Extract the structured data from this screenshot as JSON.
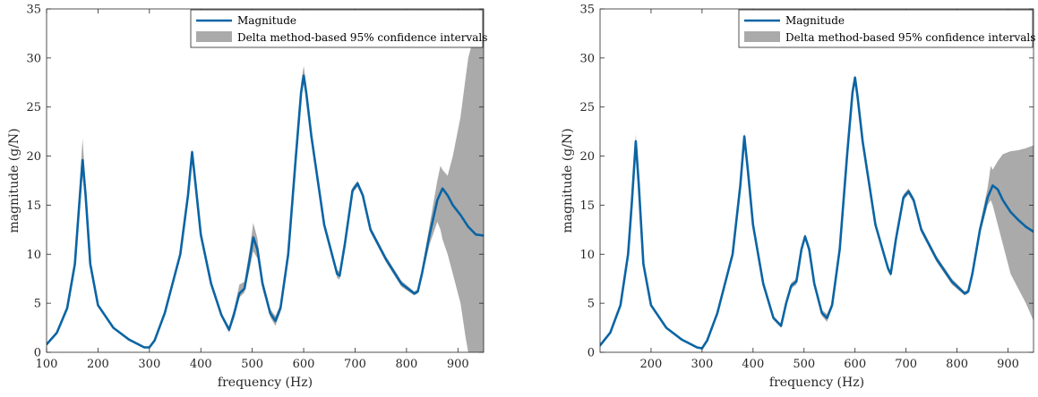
{
  "chart_data": [
    {
      "type": "line",
      "title": "",
      "xlabel": "frequency (Hz)",
      "ylabel": "magnitude (g/N)",
      "xlim": [
        100,
        950
      ],
      "ylim": [
        0,
        35
      ],
      "xticks": [
        100,
        200,
        300,
        400,
        500,
        600,
        700,
        800,
        900
      ],
      "yticks": [
        0,
        5,
        10,
        15,
        20,
        25,
        30,
        35
      ],
      "grid": false,
      "legend_position": "top-right",
      "series": [
        {
          "name": "Magnitude",
          "kind": "line",
          "color": "#0a64a4",
          "x": [
            100,
            120,
            140,
            155,
            162,
            170,
            176,
            185,
            200,
            230,
            260,
            290,
            300,
            310,
            330,
            360,
            375,
            383,
            390,
            400,
            420,
            440,
            455,
            465,
            475,
            485,
            495,
            502,
            510,
            520,
            535,
            545,
            555,
            570,
            585,
            595,
            600,
            605,
            615,
            640,
            665,
            670,
            680,
            695,
            705,
            715,
            730,
            760,
            790,
            815,
            822,
            830,
            845,
            860,
            870,
            880,
            890,
            905,
            920,
            935,
            950
          ],
          "y": [
            0.8,
            2.0,
            4.5,
            9.0,
            14.0,
            19.6,
            16.0,
            9.0,
            4.8,
            2.5,
            1.3,
            0.5,
            0.5,
            1.2,
            4.0,
            10.0,
            16.0,
            20.4,
            17.0,
            12.0,
            7.0,
            3.8,
            2.3,
            4.0,
            6.0,
            6.5,
            9.5,
            11.7,
            10.5,
            7.0,
            4.0,
            3.2,
            4.5,
            10.0,
            20.0,
            26.5,
            28.2,
            26.5,
            22.0,
            13.0,
            8.0,
            7.8,
            11.0,
            16.5,
            17.2,
            16.0,
            12.5,
            9.5,
            7.0,
            6.0,
            6.2,
            8.0,
            12.0,
            15.5,
            16.7,
            16.0,
            15.0,
            14.0,
            12.8,
            12.0,
            11.9
          ]
        },
        {
          "name": "Delta method-based 95% confidence intervals",
          "kind": "band",
          "color": "#aaaaaa",
          "x": [
            100,
            120,
            140,
            155,
            162,
            170,
            176,
            185,
            200,
            230,
            260,
            290,
            300,
            310,
            330,
            360,
            375,
            383,
            390,
            400,
            420,
            440,
            455,
            465,
            475,
            485,
            495,
            502,
            510,
            520,
            535,
            545,
            555,
            570,
            585,
            595,
            600,
            605,
            615,
            640,
            665,
            670,
            680,
            695,
            705,
            715,
            730,
            760,
            790,
            815,
            822,
            830,
            845,
            860,
            866,
            870,
            880,
            890,
            905,
            915,
            920,
            935,
            950
          ],
          "lower": [
            0.7,
            1.9,
            4.3,
            8.5,
            13.0,
            18.0,
            15.0,
            8.6,
            4.6,
            2.4,
            1.2,
            0.4,
            0.4,
            1.1,
            3.9,
            9.8,
            15.8,
            20.0,
            16.8,
            11.8,
            6.8,
            3.6,
            2.0,
            3.5,
            5.6,
            6.1,
            8.5,
            10.3,
            9.6,
            6.5,
            3.6,
            2.7,
            4.1,
            9.6,
            19.4,
            25.8,
            27.4,
            25.8,
            21.4,
            12.6,
            7.6,
            7.4,
            10.7,
            16.2,
            16.9,
            15.7,
            12.2,
            9.2,
            6.7,
            5.8,
            6.0,
            7.6,
            11.0,
            13.3,
            12.5,
            11.5,
            10.0,
            8.0,
            5.0,
            1.5,
            0,
            0,
            0
          ],
          "upper": [
            0.9,
            2.1,
            4.7,
            9.5,
            15.0,
            21.8,
            17.0,
            9.4,
            5.0,
            2.6,
            1.4,
            0.6,
            0.6,
            1.3,
            4.1,
            10.2,
            16.2,
            20.8,
            17.2,
            12.2,
            7.2,
            4.0,
            2.6,
            4.5,
            6.9,
            7.2,
            10.5,
            13.2,
            11.6,
            7.5,
            4.4,
            3.7,
            4.9,
            10.4,
            20.6,
            27.5,
            29.2,
            27.3,
            22.6,
            13.4,
            8.4,
            8.2,
            11.3,
            16.8,
            17.5,
            16.3,
            12.8,
            9.8,
            7.3,
            6.2,
            6.4,
            8.4,
            13.0,
            17.5,
            19.0,
            18.6,
            18.0,
            20.0,
            24.0,
            28.0,
            30.0,
            33.0,
            35.0
          ]
        }
      ]
    },
    {
      "type": "line",
      "title": "",
      "xlabel": "frequency (Hz)",
      "ylabel": "magnitude (g/N)",
      "xlim": [
        100,
        950
      ],
      "ylim": [
        0,
        35
      ],
      "xticks": [
        200,
        300,
        400,
        500,
        600,
        700,
        800,
        900
      ],
      "yticks": [
        0,
        5,
        10,
        15,
        20,
        25,
        30,
        35
      ],
      "grid": false,
      "legend_position": "top-right",
      "series": [
        {
          "name": "Magnitude",
          "kind": "line",
          "color": "#0a64a4",
          "x": [
            100,
            120,
            140,
            155,
            162,
            170,
            176,
            185,
            200,
            230,
            260,
            290,
            300,
            310,
            330,
            360,
            375,
            383,
            390,
            400,
            420,
            440,
            455,
            465,
            475,
            485,
            495,
            502,
            510,
            520,
            535,
            545,
            555,
            570,
            585,
            595,
            600,
            605,
            615,
            640,
            665,
            670,
            680,
            695,
            705,
            715,
            730,
            760,
            790,
            815,
            822,
            830,
            845,
            860,
            870,
            880,
            890,
            905,
            920,
            935,
            950
          ],
          "y": [
            0.7,
            2.0,
            4.8,
            10.0,
            15.0,
            21.5,
            17.0,
            9.0,
            4.8,
            2.5,
            1.3,
            0.5,
            0.4,
            1.2,
            4.0,
            10.0,
            17.0,
            22.0,
            18.5,
            13.0,
            7.0,
            3.5,
            2.7,
            5.0,
            6.8,
            7.2,
            10.5,
            11.8,
            10.5,
            7.0,
            4.0,
            3.5,
            4.8,
            10.5,
            20.5,
            26.5,
            28.0,
            26.0,
            21.5,
            13.0,
            8.5,
            8.0,
            11.5,
            15.8,
            16.4,
            15.5,
            12.5,
            9.5,
            7.2,
            6.0,
            6.2,
            8.0,
            12.5,
            15.8,
            17.0,
            16.6,
            15.5,
            14.3,
            13.5,
            12.8,
            12.3
          ]
        },
        {
          "name": "Delta method-based 95% confidence intervals",
          "kind": "band",
          "color": "#aaaaaa",
          "x": [
            100,
            120,
            140,
            155,
            162,
            170,
            176,
            185,
            200,
            230,
            260,
            290,
            300,
            310,
            330,
            360,
            375,
            383,
            390,
            400,
            420,
            440,
            455,
            465,
            475,
            485,
            495,
            502,
            510,
            520,
            535,
            545,
            555,
            570,
            585,
            595,
            600,
            605,
            615,
            640,
            665,
            670,
            680,
            695,
            705,
            715,
            730,
            760,
            790,
            815,
            822,
            830,
            845,
            860,
            866,
            870,
            880,
            890,
            905,
            920,
            935,
            950
          ],
          "lower": [
            0.6,
            1.9,
            4.6,
            9.6,
            14.4,
            20.8,
            16.6,
            8.7,
            4.6,
            2.4,
            1.2,
            0.4,
            0.3,
            1.1,
            3.9,
            9.8,
            16.7,
            21.6,
            18.2,
            12.8,
            6.8,
            3.3,
            2.5,
            4.7,
            6.5,
            6.9,
            10.2,
            11.5,
            10.2,
            6.7,
            3.7,
            3.1,
            4.5,
            10.2,
            20.2,
            26.2,
            27.7,
            25.7,
            21.2,
            12.8,
            8.2,
            7.7,
            11.2,
            15.5,
            16.1,
            15.2,
            12.2,
            9.2,
            6.9,
            5.8,
            6.0,
            7.7,
            12.0,
            15.0,
            15.5,
            15.0,
            13.0,
            11.0,
            8.0,
            6.5,
            5.0,
            3.2
          ],
          "upper": [
            0.8,
            2.1,
            5.0,
            10.4,
            15.6,
            22.2,
            17.4,
            9.3,
            5.0,
            2.6,
            1.4,
            0.6,
            0.5,
            1.3,
            4.1,
            10.2,
            17.3,
            22.4,
            18.8,
            13.2,
            7.2,
            3.7,
            2.9,
            5.3,
            7.1,
            7.5,
            10.8,
            12.1,
            10.8,
            7.3,
            4.3,
            3.9,
            5.1,
            10.8,
            20.8,
            26.8,
            28.3,
            26.3,
            21.8,
            13.2,
            8.8,
            8.3,
            11.8,
            16.1,
            16.7,
            15.8,
            12.8,
            9.8,
            7.5,
            6.2,
            6.4,
            8.3,
            13.0,
            16.8,
            19.0,
            18.6,
            19.5,
            20.2,
            20.5,
            20.6,
            20.8,
            21.1
          ]
        }
      ]
    }
  ]
}
